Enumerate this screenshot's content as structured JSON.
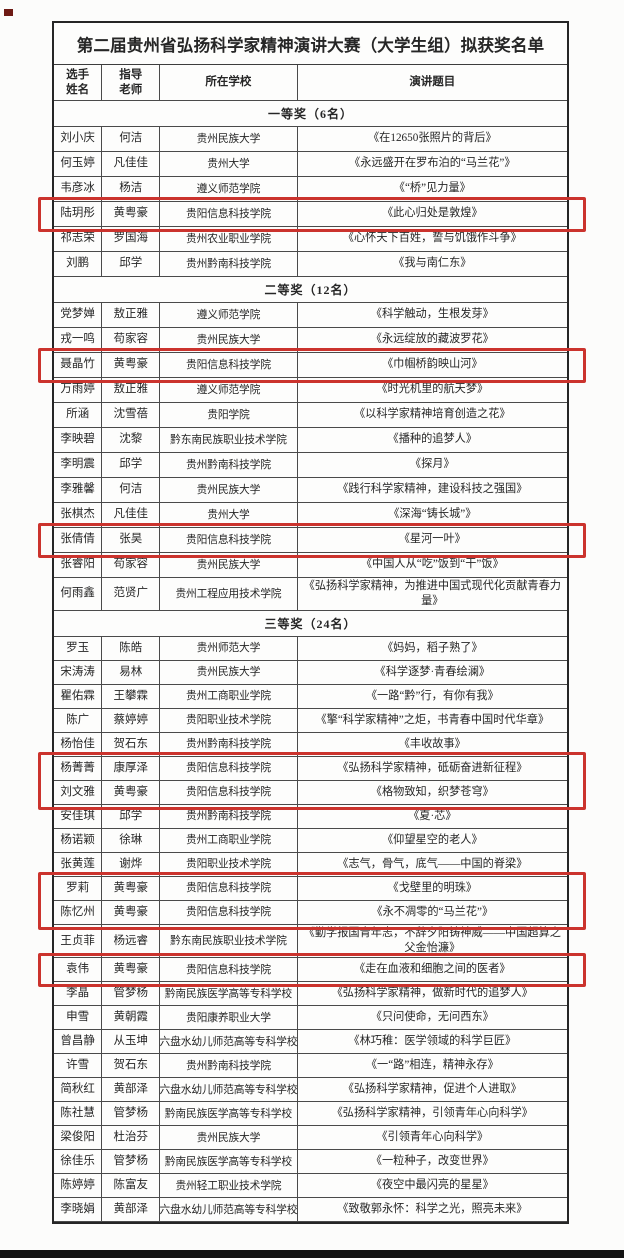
{
  "title": "第二届贵州省弘扬科学家精神演讲大赛（大学生组）拟获奖名单",
  "columns": [
    "选手\n姓名",
    "指导\n老师",
    "所在学校",
    "演讲题目"
  ],
  "highlight_color": "#cb332d",
  "sections": [
    {
      "label": "一等奖（6名）",
      "rows": [
        {
          "name": "刘小庆",
          "teacher": "何洁",
          "school": "贵州民族大学",
          "topic": "《在12650张照片的背后》"
        },
        {
          "name": "何玉婷",
          "teacher": "凡佳佳",
          "school": "贵州大学",
          "topic": "《永远盛开在罗布泊的“马兰花”》"
        },
        {
          "name": "韦彦冰",
          "teacher": "杨洁",
          "school": "遵义师范学院",
          "topic": "《“桥”见力量》"
        },
        {
          "name": "陆玥彤",
          "teacher": "黄粤豪",
          "school": "贵阳信息科技学院",
          "topic": "《此心归处是敦煌》",
          "hl": "a1"
        },
        {
          "name": "祁志荣",
          "teacher": "罗国海",
          "school": "贵州农业职业学院",
          "topic": "《心怀天下百姓，誓与饥饿作斗争》"
        },
        {
          "name": "刘鹏",
          "teacher": "邱学",
          "school": "贵州黔南科技学院",
          "topic": "《我与南仁东》"
        }
      ]
    },
    {
      "label": "二等奖（12名）",
      "rows": [
        {
          "name": "党梦婵",
          "teacher": "敖正雅",
          "school": "遵义师范学院",
          "topic": "《科学触动，生根发芽》"
        },
        {
          "name": "戎一鸣",
          "teacher": "苟家容",
          "school": "贵州民族大学",
          "topic": "《永远绽放的藏波罗花》"
        },
        {
          "name": "聂晶竹",
          "teacher": "黄粤豪",
          "school": "贵阳信息科技学院",
          "topic": "《巾帼桥韵映山河》",
          "hl": "b1"
        },
        {
          "name": "万雨婷",
          "teacher": "敖正雅",
          "school": "遵义师范学院",
          "topic": "《时光机里的航天梦》"
        },
        {
          "name": "所涵",
          "teacher": "沈雪蓓",
          "school": "贵阳学院",
          "topic": "《以科学家精神培育创造之花》"
        },
        {
          "name": "李映碧",
          "teacher": "沈黎",
          "school": "黔东南民族职业技术学院",
          "topic": "《播种的追梦人》"
        },
        {
          "name": "李明震",
          "teacher": "邱学",
          "school": "贵州黔南科技学院",
          "topic": "《探月》"
        },
        {
          "name": "李雅馨",
          "teacher": "何洁",
          "school": "贵州民族大学",
          "topic": "《践行科学家精神，建设科技之强国》"
        },
        {
          "name": "张棋杰",
          "teacher": "凡佳佳",
          "school": "贵州大学",
          "topic": "《深海“铸长城”》"
        },
        {
          "name": "张倩倩",
          "teacher": "张昊",
          "school": "贵阳信息科技学院",
          "topic": "《星河一叶》",
          "hl": "b2"
        },
        {
          "name": "张睿阳",
          "teacher": "苟家容",
          "school": "贵州民族大学",
          "topic": "《中国人从“吃”饭到“干”饭》"
        },
        {
          "name": "何雨鑫",
          "teacher": "范贤广",
          "school": "贵州工程应用技术学院",
          "topic": "《弘扬科学家精神，为推进中国式现代化贡献青春力量》"
        }
      ]
    },
    {
      "label": "三等奖（24名）",
      "rows": [
        {
          "name": "罗玉",
          "teacher": "陈皓",
          "school": "贵州师范大学",
          "topic": "《妈妈，稻子熟了》"
        },
        {
          "name": "宋涛涛",
          "teacher": "易林",
          "school": "贵州民族大学",
          "topic": "《科学逐梦·青春绘澜》"
        },
        {
          "name": "瞿佑霖",
          "teacher": "王攀霖",
          "school": "贵州工商职业学院",
          "topic": "《一路“黔”行，有你有我》"
        },
        {
          "name": "陈广",
          "teacher": "蔡婷婷",
          "school": "贵阳职业技术学院",
          "topic": "《擎“科学家精神”之炬，书青春中国时代华章》"
        },
        {
          "name": "杨怡佳",
          "teacher": "贺石东",
          "school": "贵州黔南科技学院",
          "topic": "《丰收故事》"
        },
        {
          "name": "杨菁菁",
          "teacher": "康厚泽",
          "school": "贵阳信息科技学院",
          "topic": "《弘扬科学家精神，砥砺奋进新征程》",
          "hl": "c1"
        },
        {
          "name": "刘文雅",
          "teacher": "黄粤豪",
          "school": "贵阳信息科技学院",
          "topic": "《格物致知，织梦苍穹》",
          "hl": "c1"
        },
        {
          "name": "安佳琪",
          "teacher": "邱学",
          "school": "贵州黔南科技学院",
          "topic": "《夏·芯》"
        },
        {
          "name": "杨诺颖",
          "teacher": "徐琳",
          "school": "贵州工商职业学院",
          "topic": "《仰望星空的老人》"
        },
        {
          "name": "张黄莲",
          "teacher": "谢烨",
          "school": "贵阳职业技术学院",
          "topic": "《志气，骨气，底气——中国的脊梁》"
        },
        {
          "name": "罗莉",
          "teacher": "黄粤豪",
          "school": "贵阳信息科技学院",
          "topic": "《戈壁里的明珠》",
          "hl": "c2"
        },
        {
          "name": "陈忆州",
          "teacher": "黄粤豪",
          "school": "贵阳信息科技学院",
          "topic": "《永不凋零的“马兰花”》",
          "hl": "c2"
        },
        {
          "name": "王贞菲",
          "teacher": "杨远睿",
          "school": "黔东南民族职业技术学院",
          "topic": "《勤学报国青年志，不辞夕阳铸神威——中国超算之父金怡濂》"
        },
        {
          "name": "袁伟",
          "teacher": "黄粤豪",
          "school": "贵阳信息科技学院",
          "topic": "《走在血液和细胞之间的医者》",
          "hl": "c3"
        },
        {
          "name": "李晶",
          "teacher": "管梦杨",
          "school": "黔南民族医学高等专科学校",
          "topic": "《弘扬科学家精神，做新时代的追梦人》"
        },
        {
          "name": "申雪",
          "teacher": "黄朝霞",
          "school": "贵阳康养职业大学",
          "topic": "《只问使命，无问西东》"
        },
        {
          "name": "曾昌静",
          "teacher": "从玉坤",
          "school": "六盘水幼儿师范高等专科学校",
          "topic": "《林巧稚：医学领域的科学巨匠》"
        },
        {
          "name": "许雪",
          "teacher": "贺石东",
          "school": "贵州黔南科技学院",
          "topic": "《一“路”相连，精神永存》"
        },
        {
          "name": "简秋红",
          "teacher": "黄部泽",
          "school": "六盘水幼儿师范高等专科学校",
          "topic": "《弘扬科学家精神，促进个人进取》"
        },
        {
          "name": "陈社慧",
          "teacher": "管梦杨",
          "school": "黔南民族医学高等专科学校",
          "topic": "《弘扬科学家精神，引领青年心向科学》"
        },
        {
          "name": "梁俊阳",
          "teacher": "杜治芬",
          "school": "贵州民族大学",
          "topic": "《引领青年心向科学》"
        },
        {
          "name": "徐佳乐",
          "teacher": "管梦杨",
          "school": "黔南民族医学高等专科学校",
          "topic": "《一粒种子，改变世界》"
        },
        {
          "name": "陈婷婷",
          "teacher": "陈富友",
          "school": "贵州轻工职业技术学院",
          "topic": "《夜空中最闪亮的星星》"
        },
        {
          "name": "李晓娟",
          "teacher": "黄部泽",
          "school": "六盘水幼儿师范高等专科学校",
          "topic": "《致敬郭永怀：科学之光，照亮未来》"
        }
      ]
    }
  ]
}
